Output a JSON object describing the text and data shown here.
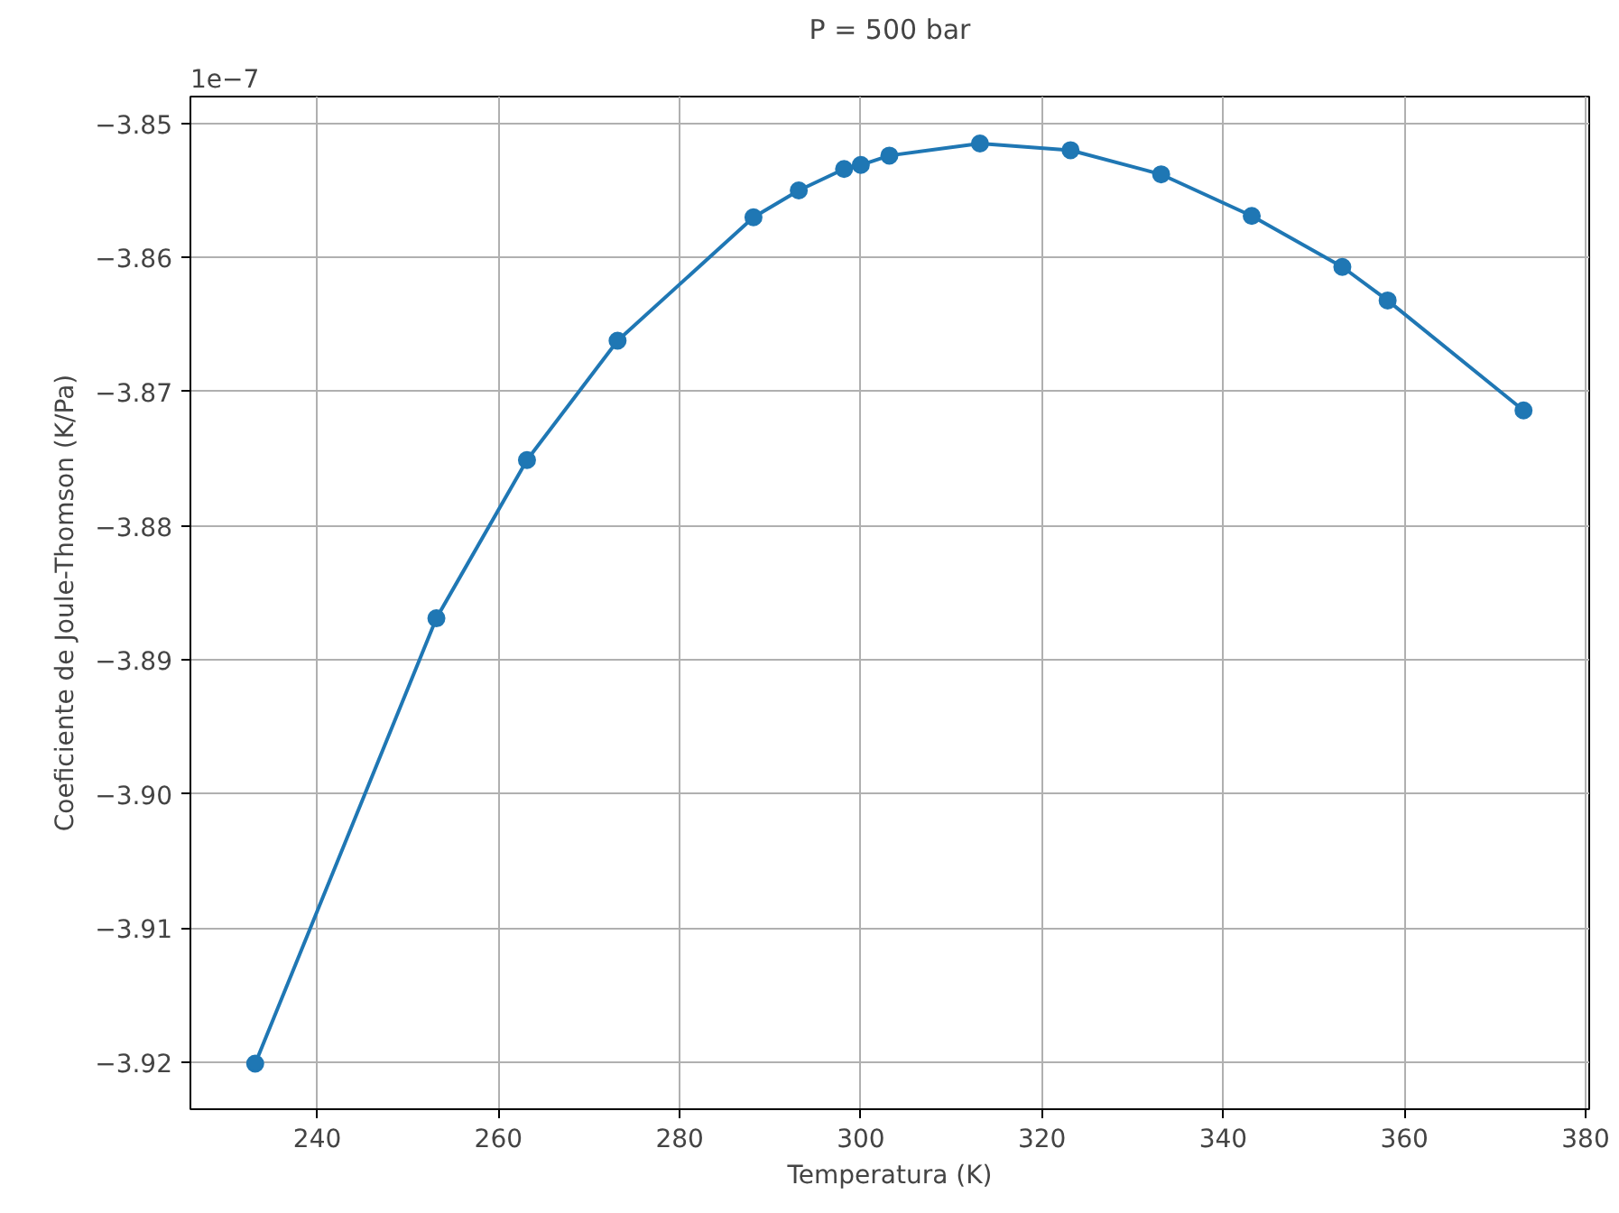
{
  "chart_data": {
    "type": "line",
    "title": "P = 500 bar",
    "xlabel": "Temperatura (K)",
    "ylabel": "Coeficiente de Joule-Thomson (K/Pa)",
    "annotations": [
      "1e−7"
    ],
    "x": [
      233.15,
      253.15,
      263.15,
      273.15,
      288.15,
      293.15,
      298.15,
      300.0,
      303.15,
      313.15,
      323.15,
      333.15,
      343.15,
      353.15,
      358.15,
      373.15
    ],
    "series": [
      {
        "color": "#1f77b4",
        "values": [
          -3.9201,
          -3.8869,
          -3.8751,
          -3.8662,
          -3.857,
          -3.855,
          -3.8534,
          -3.8531,
          -3.8524,
          -3.8515,
          -3.852,
          -3.8538,
          -3.8569,
          -3.8607,
          -3.8632,
          -3.8714
        ]
      }
    ],
    "xlim": [
      226,
      380.4
    ],
    "ylim": [
      -3.9235,
      -3.848
    ],
    "xticks": [
      240,
      260,
      280,
      300,
      320,
      340,
      360,
      380
    ],
    "yticks": [
      {
        "value": -3.92,
        "label": "−3.92"
      },
      {
        "value": -3.91,
        "label": "−3.91"
      },
      {
        "value": -3.9,
        "label": "−3.90"
      },
      {
        "value": -3.89,
        "label": "−3.89"
      },
      {
        "value": -3.88,
        "label": "−3.88"
      },
      {
        "value": -3.87,
        "label": "−3.87"
      },
      {
        "value": -3.86,
        "label": "−3.86"
      },
      {
        "value": -3.85,
        "label": "−3.85"
      }
    ],
    "grid": true,
    "marker": "circle",
    "line_style": "solid"
  }
}
